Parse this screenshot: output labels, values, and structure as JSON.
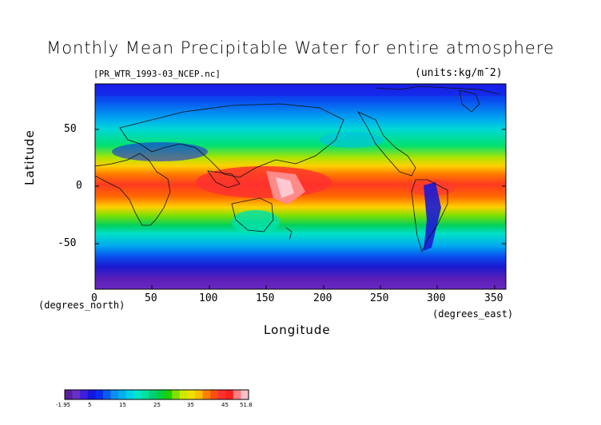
{
  "header": {
    "title": "Monthly Mean Precipitable Water for entire atmosphere",
    "file": "[PR_WTR_1993-03_NCEP.nc]",
    "units": "(units:kg/m¯2)"
  },
  "axes": {
    "ylabel": "Latitude",
    "xlabel": "Longitude",
    "ynote": "(degrees_north)",
    "xnote": "(degrees_east)",
    "yticks": [
      "50",
      "0",
      "-50"
    ],
    "xticks": [
      "0",
      "50",
      "100",
      "150",
      "200",
      "250",
      "300",
      "350"
    ]
  },
  "colorbar": {
    "labels": [
      "-1.95",
      "5",
      "15",
      "25",
      "35",
      "45",
      "51.8"
    ],
    "colors": [
      "#5a1f9e",
      "#6a2fc9",
      "#3d1fd9",
      "#1515e0",
      "#0a2cf0",
      "#0a5bf0",
      "#0c8ff0",
      "#00b0f0",
      "#00d0e8",
      "#00e6c8",
      "#00e0a0",
      "#00d070",
      "#00d040",
      "#20d000",
      "#80e000",
      "#d0e800",
      "#f0e000",
      "#ffc000",
      "#ff8000",
      "#ff5010",
      "#ff3030",
      "#ff2020",
      "#ff8080",
      "#ffc0c8"
    ]
  },
  "map": {
    "region": "global",
    "lon_range": [
      0,
      360
    ],
    "lat_range": [
      -90,
      90
    ],
    "colormap": "rainbow",
    "coastlines": true
  }
}
